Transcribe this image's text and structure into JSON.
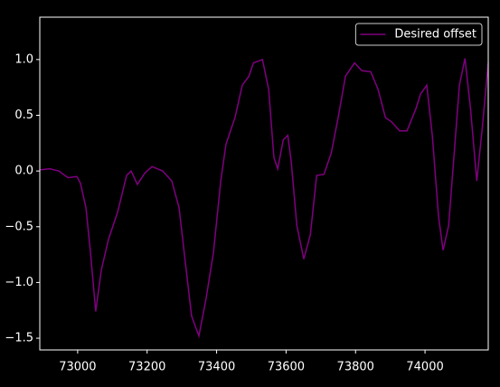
{
  "chart_data": {
    "type": "line",
    "x": [
      72891,
      72920,
      72946,
      72972,
      72998,
      73008,
      73024,
      73037,
      73052,
      73068,
      73089,
      73115,
      73141,
      73154,
      73172,
      73193,
      73214,
      73245,
      73271,
      73292,
      73310,
      73328,
      73349,
      73370,
      73391,
      73412,
      73427,
      73453,
      73474,
      73493,
      73506,
      73532,
      73550,
      73565,
      73576,
      73592,
      73605,
      73615,
      73631,
      73651,
      73670,
      73688,
      73709,
      73730,
      73750,
      73771,
      73797,
      73818,
      73844,
      73865,
      73886,
      73904,
      73927,
      73948,
      73974,
      73987,
      74005,
      74021,
      74039,
      74052,
      74068,
      74086,
      74099,
      74115,
      74131,
      74149,
      74164,
      74182
    ],
    "series": [
      {
        "name": "Desired offset",
        "color": "#800080",
        "values": [
          0.01,
          0.02,
          0.0,
          -0.06,
          -0.05,
          -0.11,
          -0.33,
          -0.73,
          -1.26,
          -0.89,
          -0.61,
          -0.37,
          -0.04,
          0.0,
          -0.12,
          -0.02,
          0.04,
          0.0,
          -0.09,
          -0.33,
          -0.82,
          -1.3,
          -1.48,
          -1.14,
          -0.73,
          -0.09,
          0.24,
          0.48,
          0.77,
          0.85,
          0.97,
          1.0,
          0.73,
          0.12,
          0.02,
          0.28,
          0.32,
          0.08,
          -0.49,
          -0.79,
          -0.57,
          -0.04,
          -0.03,
          0.16,
          0.48,
          0.85,
          0.97,
          0.9,
          0.89,
          0.73,
          0.48,
          0.44,
          0.36,
          0.36,
          0.56,
          0.69,
          0.77,
          0.32,
          -0.41,
          -0.71,
          -0.49,
          0.24,
          0.77,
          1.01,
          0.56,
          -0.09,
          0.36,
          0.97
        ]
      }
    ],
    "xlim": [
      72891,
      74182
    ],
    "xticks": [
      73000,
      73200,
      73400,
      73600,
      73800,
      74000
    ],
    "ylim": [
      -1.605,
      1.38
    ],
    "yticks": [
      {
        "value": -1.5,
        "label": "−1.5"
      },
      {
        "value": -1.0,
        "label": "−1.0"
      },
      {
        "value": -0.5,
        "label": "−0.5"
      },
      {
        "value": 0.0,
        "label": "0.0"
      },
      {
        "value": 0.5,
        "label": "0.5"
      },
      {
        "value": 1.0,
        "label": "1.0"
      }
    ],
    "legend": "upper right"
  }
}
